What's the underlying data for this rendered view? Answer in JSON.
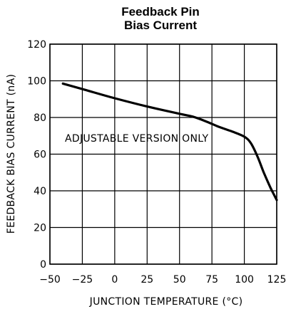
{
  "chart_data": {
    "type": "line",
    "title_lines": [
      "Feedback Pin",
      "Bias Current"
    ],
    "xlabel": "JUNCTION TEMPERATURE (°C)",
    "ylabel": "FEEDBACK BIAS CURRENT (nA)",
    "annotation": "ADJUSTABLE VERSION ONLY",
    "xlim": [
      -50,
      125
    ],
    "ylim": [
      0,
      120
    ],
    "xticks": [
      -50,
      -25,
      0,
      25,
      50,
      75,
      100,
      125
    ],
    "yticks": [
      0,
      20,
      40,
      60,
      80,
      100,
      120
    ],
    "grid": true,
    "series": [
      {
        "x": [
          -40,
          -25,
          0,
          25,
          50,
          60,
          70,
          80,
          90,
          100,
          105,
          110,
          115,
          120,
          125
        ],
        "y": [
          98.5,
          95.5,
          90.5,
          86,
          82,
          80.5,
          78,
          75,
          72.5,
          69.5,
          66,
          59,
          50,
          42,
          35
        ],
        "color": "#000000"
      }
    ]
  }
}
